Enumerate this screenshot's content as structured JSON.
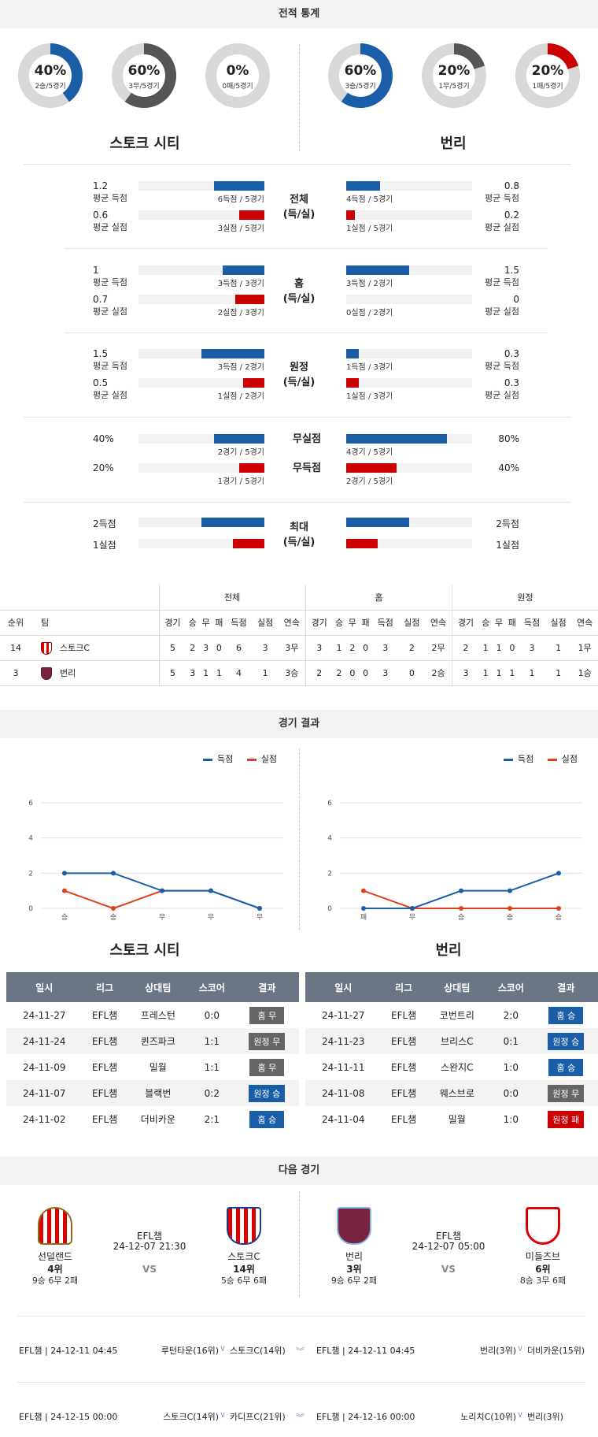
{
  "stats_section": {
    "title": "전적 통계",
    "home_team": "스토크 시티",
    "away_team": "번리",
    "home_donuts": [
      {
        "pct": "40%",
        "sub": "2승/5경기",
        "value": 0.4,
        "color": "#1a5ea8"
      },
      {
        "pct": "60%",
        "sub": "3무/5경기",
        "value": 0.6,
        "color": "#555555"
      },
      {
        "pct": "0%",
        "sub": "0패/5경기",
        "value": 0.0,
        "color": "#cc0000"
      }
    ],
    "away_donuts": [
      {
        "pct": "60%",
        "sub": "3승/5경기",
        "value": 0.6,
        "color": "#1a5ea8"
      },
      {
        "pct": "20%",
        "sub": "1무/5경기",
        "value": 0.2,
        "color": "#555555"
      },
      {
        "pct": "20%",
        "sub": "1패/5경기",
        "value": 0.2,
        "color": "#cc0000"
      }
    ],
    "groups": [
      {
        "label": "전체\n(득/실)",
        "rows": [
          {
            "home_val": "1.2",
            "home_lbl": "평균 득점",
            "home_cap": "6득점 / 5경기",
            "home_frac": 0.4,
            "away_val": "0.8",
            "away_lbl": "평균 득점",
            "away_cap": "4득점 / 5경기",
            "away_frac": 0.27,
            "color": "blue"
          },
          {
            "home_val": "0.6",
            "home_lbl": "평균 실점",
            "home_cap": "3실점 / 5경기",
            "home_frac": 0.2,
            "away_val": "0.2",
            "away_lbl": "평균 실점",
            "away_cap": "1실점 / 5경기",
            "away_frac": 0.07,
            "color": "red"
          }
        ]
      },
      {
        "label": "홈\n(득/실)",
        "rows": [
          {
            "home_val": "1",
            "home_lbl": "평균 득점",
            "home_cap": "3득점 / 3경기",
            "home_frac": 0.33,
            "away_val": "1.5",
            "away_lbl": "평균 득점",
            "away_cap": "3득점 / 2경기",
            "away_frac": 0.5,
            "color": "blue"
          },
          {
            "home_val": "0.7",
            "home_lbl": "평균 실점",
            "home_cap": "2실점 / 3경기",
            "home_frac": 0.23,
            "away_val": "0",
            "away_lbl": "평균 실점",
            "away_cap": "0실점 / 2경기",
            "away_frac": 0.0,
            "color": "red"
          }
        ]
      },
      {
        "label": "원정\n(득/실)",
        "rows": [
          {
            "home_val": "1.5",
            "home_lbl": "평균 득점",
            "home_cap": "3득점 / 2경기",
            "home_frac": 0.5,
            "away_val": "0.3",
            "away_lbl": "평균 득점",
            "away_cap": "1득점 / 3경기",
            "away_frac": 0.1,
            "color": "blue"
          },
          {
            "home_val": "0.5",
            "home_lbl": "평균 실점",
            "home_cap": "1실점 / 2경기",
            "home_frac": 0.17,
            "away_val": "0.3",
            "away_lbl": "평균 실점",
            "away_cap": "1실점 / 3경기",
            "away_frac": 0.1,
            "color": "red"
          }
        ]
      }
    ],
    "shutouts": [
      {
        "label": "무실점",
        "home_val": "40%",
        "home_cap": "2경기 / 5경기",
        "home_frac": 0.4,
        "away_val": "80%",
        "away_cap": "4경기 / 5경기",
        "away_frac": 0.8,
        "color": "blue"
      },
      {
        "label": "무득점",
        "home_val": "20%",
        "home_cap": "1경기 / 5경기",
        "home_frac": 0.2,
        "away_val": "40%",
        "away_cap": "2경기 / 5경기",
        "away_frac": 0.4,
        "color": "red"
      }
    ],
    "max": {
      "label": "최대\n(득/실)",
      "rows": [
        {
          "home_val": "2득점",
          "home_frac": 0.5,
          "away_val": "2득점",
          "away_frac": 0.5,
          "color": "blue"
        },
        {
          "home_val": "1실점",
          "home_frac": 0.25,
          "away_val": "1실점",
          "away_frac": 0.25,
          "color": "red"
        }
      ]
    }
  },
  "standings": {
    "group_headers": [
      "전체",
      "홈",
      "원정"
    ],
    "col_rank": "순위",
    "col_team": "팀",
    "sub_headers": [
      "경기",
      "승",
      "무",
      "패",
      "득점",
      "실점",
      "연속"
    ],
    "rows": [
      {
        "rank": "14",
        "team": "스토크C",
        "crest": "stoke-crest",
        "total": [
          "5",
          "2",
          "3",
          "0",
          "6",
          "3",
          "3무"
        ],
        "home": [
          "3",
          "1",
          "2",
          "0",
          "3",
          "2",
          "2무"
        ],
        "away": [
          "2",
          "1",
          "1",
          "0",
          "3",
          "1",
          "1무"
        ]
      },
      {
        "rank": "3",
        "team": "번리",
        "crest": "burnley-crest",
        "total": [
          "5",
          "3",
          "1",
          "1",
          "4",
          "1",
          "3승"
        ],
        "home": [
          "2",
          "2",
          "0",
          "0",
          "3",
          "0",
          "2승"
        ],
        "away": [
          "3",
          "1",
          "1",
          "1",
          "1",
          "1",
          "1승"
        ]
      }
    ]
  },
  "results_section": {
    "title": "경기 결과",
    "legend_scored": "득점",
    "legend_conceded": "실점",
    "colors": {
      "scored": "#1a5ea8",
      "conceded": "#e0401c"
    }
  },
  "chart_data": [
    {
      "type": "line",
      "categories": [
        "승",
        "승",
        "무",
        "무",
        "무"
      ],
      "series": [
        {
          "name": "득점",
          "values": [
            2,
            2,
            1,
            1,
            0
          ]
        },
        {
          "name": "실점",
          "values": [
            1,
            0,
            1,
            1,
            0
          ]
        }
      ],
      "yticks": [
        0,
        2,
        4,
        6
      ],
      "ylim": [
        0,
        6
      ],
      "legend": "top-right"
    },
    {
      "type": "line",
      "categories": [
        "패",
        "무",
        "승",
        "승",
        "승"
      ],
      "series": [
        {
          "name": "득점",
          "values": [
            0,
            0,
            1,
            1,
            2
          ]
        },
        {
          "name": "실점",
          "values": [
            1,
            0,
            0,
            0,
            0
          ]
        }
      ],
      "yticks": [
        0,
        2,
        4,
        6
      ],
      "ylim": [
        0,
        6
      ],
      "legend": "top-right"
    }
  ],
  "results_tables": {
    "headers": [
      "일시",
      "리그",
      "상대팀",
      "스코어",
      "결과"
    ],
    "home_title": "스토크 시티",
    "away_title": "번리",
    "home_rows": [
      {
        "date": "24-11-27",
        "league": "EFL챔",
        "opp": "프레스턴",
        "score": "0:0",
        "result": "홈 무",
        "kind": "gray"
      },
      {
        "date": "24-11-24",
        "league": "EFL챔",
        "opp": "퀸즈파크",
        "score": "1:1",
        "result": "원정 무",
        "kind": "gray"
      },
      {
        "date": "24-11-09",
        "league": "EFL챔",
        "opp": "밀월",
        "score": "1:1",
        "result": "홈 무",
        "kind": "gray"
      },
      {
        "date": "24-11-07",
        "league": "EFL챔",
        "opp": "블랙번",
        "score": "0:2",
        "result": "원정 승",
        "kind": "blue"
      },
      {
        "date": "24-11-02",
        "league": "EFL챔",
        "opp": "더비카운",
        "score": "2:1",
        "result": "홈 승",
        "kind": "blue"
      }
    ],
    "away_rows": [
      {
        "date": "24-11-27",
        "league": "EFL챔",
        "opp": "코번트리",
        "score": "2:0",
        "result": "홈 승",
        "kind": "blue"
      },
      {
        "date": "24-11-23",
        "league": "EFL챔",
        "opp": "브리스C",
        "score": "0:1",
        "result": "원정 승",
        "kind": "blue"
      },
      {
        "date": "24-11-11",
        "league": "EFL챔",
        "opp": "스완지C",
        "score": "1:0",
        "result": "홈 승",
        "kind": "blue"
      },
      {
        "date": "24-11-08",
        "league": "EFL챔",
        "opp": "웨스브로",
        "score": "0:0",
        "result": "원정 무",
        "kind": "gray"
      },
      {
        "date": "24-11-04",
        "league": "EFL챔",
        "opp": "밀월",
        "score": "1:0",
        "result": "원정 패",
        "kind": "red"
      }
    ]
  },
  "next_section": {
    "title": "다음 경기",
    "vs": "VS",
    "matches": [
      {
        "league": "EFL챔",
        "datetime": "24-12-07 21:30",
        "home": {
          "name": "선덜랜드",
          "rank": "4위",
          "record": "9승 6무 2패",
          "crest": "sunderland-crest"
        },
        "away": {
          "name": "스토크C",
          "rank": "14위",
          "record": "5승 6무 6패",
          "crest": "stoke-crest"
        }
      },
      {
        "league": "EFL챔",
        "datetime": "24-12-07 05:00",
        "home": {
          "name": "번리",
          "rank": "3위",
          "record": "9승 6무 2패",
          "crest": "burnley-crest"
        },
        "away": {
          "name": "미들즈브",
          "rank": "6위",
          "record": "8승 3무 6패",
          "crest": "middlesbrough-crest"
        }
      }
    ],
    "fixtures": [
      {
        "left": {
          "meta": "EFL챔 | 24-12-11 04:45",
          "home": "루턴타운(16위)",
          "away": "스토크C(14위)"
        },
        "right": {
          "meta": "EFL챔 | 24-12-11 04:45",
          "home": "번리(3위)",
          "away": "더비카운(15위)"
        }
      },
      {
        "left": {
          "meta": "EFL챔 | 24-12-15 00:00",
          "home": "스토크C(14위)",
          "away": "카디프C(21위)"
        },
        "right": {
          "meta": "EFL챔 | 24-12-16 00:00",
          "home": "노리치C(10위)",
          "away": "번리(3위)"
        }
      }
    ]
  }
}
